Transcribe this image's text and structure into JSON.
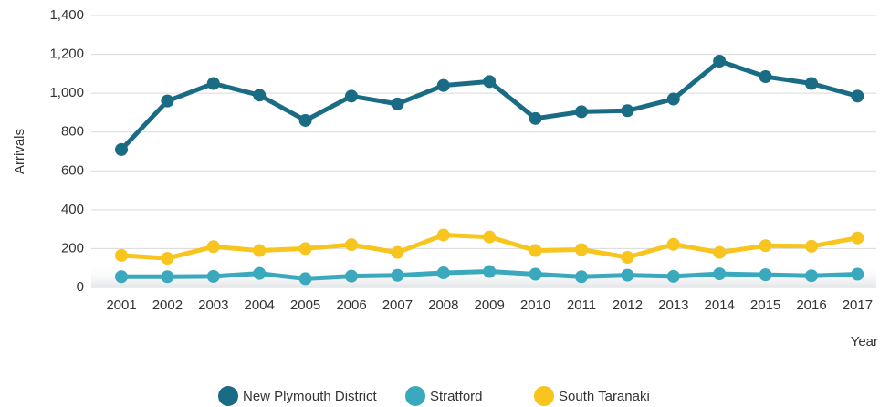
{
  "chart_data": {
    "type": "line",
    "y_label": "Arrivals",
    "x_label": "Year",
    "categories": [
      "2001",
      "2002",
      "2003",
      "2004",
      "2005",
      "2006",
      "2007",
      "2008",
      "2009",
      "2010",
      "2011",
      "2012",
      "2013",
      "2014",
      "2015",
      "2016",
      "2017"
    ],
    "series": [
      {
        "name": "New Plymouth District",
        "color": "#1a6b84",
        "values": [
          710,
          960,
          1050,
          990,
          860,
          985,
          945,
          1040,
          1060,
          870,
          905,
          910,
          970,
          1165,
          1085,
          1050,
          985
        ]
      },
      {
        "name": "Stratford",
        "color": "#3ba9bd",
        "values": [
          55,
          55,
          57,
          72,
          45,
          58,
          62,
          75,
          82,
          68,
          55,
          63,
          57,
          70,
          65,
          60,
          68
        ]
      },
      {
        "name": "South Taranaki",
        "color": "#f7c51e",
        "values": [
          165,
          150,
          210,
          190,
          200,
          220,
          180,
          270,
          260,
          190,
          195,
          155,
          222,
          180,
          215,
          212,
          255
        ]
      }
    ],
    "ylim": [
      0,
      1400
    ],
    "yticks": [
      0,
      200,
      400,
      600,
      800,
      {
        "value": 1000,
        "label": "1,000"
      },
      {
        "value": 1200,
        "label": "1,200"
      },
      {
        "value": 1400,
        "label": "1,400"
      }
    ],
    "grid": true,
    "legend": "bottom"
  }
}
